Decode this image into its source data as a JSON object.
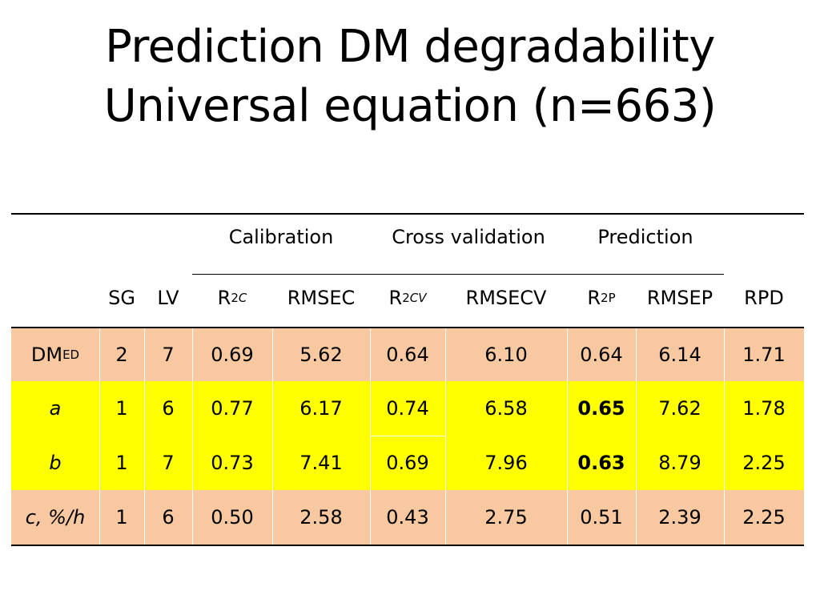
{
  "title": {
    "line1": "Prediction DM degradability",
    "line2": "Universal equation (n=663)"
  },
  "group_headers": {
    "calibration": "Calibration",
    "cross_validation": "Cross validation",
    "prediction": "Prediction"
  },
  "columns": {
    "sg": "SG",
    "lv": "LV",
    "r2c_base": "R",
    "r2c_sup": "2",
    "r2c_sub": "C",
    "rmsec": "RMSEC",
    "r2cv_base": "R",
    "r2cv_sup": "2",
    "r2cv_sub": "CV",
    "rmsecv": "RMSECV",
    "r2p_base": "R",
    "r2p_sup": "2",
    "r2p_sub": "P",
    "rmsep": "RMSEP",
    "rpd": "RPD"
  },
  "rows": [
    {
      "label": "DM",
      "label_sub": "ED",
      "sg": "2",
      "lv": "7",
      "r2c": "0.69",
      "rmsec": "5.62",
      "r2cv": "0.64",
      "rmsecv": "6.10",
      "r2p": "0.64",
      "rmsep": "6.14",
      "rpd": "1.71"
    },
    {
      "label": "a",
      "sg": "1",
      "lv": "6",
      "r2c": "0.77",
      "rmsec": "6.17",
      "r2cv": "0.74",
      "rmsecv": "6.58",
      "r2p": "0.65",
      "rmsep": "7.62",
      "rpd": "1.78"
    },
    {
      "label": "b",
      "sg": "1",
      "lv": "7",
      "r2c": "0.73",
      "rmsec": "7.41",
      "r2cv": "0.69",
      "rmsecv": "7.96",
      "r2p": "0.63",
      "rmsep": "8.79",
      "rpd": "2.25"
    },
    {
      "label": "c, %/h",
      "sg": "1",
      "lv": "6",
      "r2c": "0.50",
      "rmsec": "2.58",
      "r2cv": "0.43",
      "rmsecv": "2.75",
      "r2p": "0.51",
      "rmsep": "2.39",
      "rpd": "2.25"
    }
  ],
  "colors": {
    "orange_row": "#f8c8a0",
    "yellow_row": "#ffff00"
  }
}
